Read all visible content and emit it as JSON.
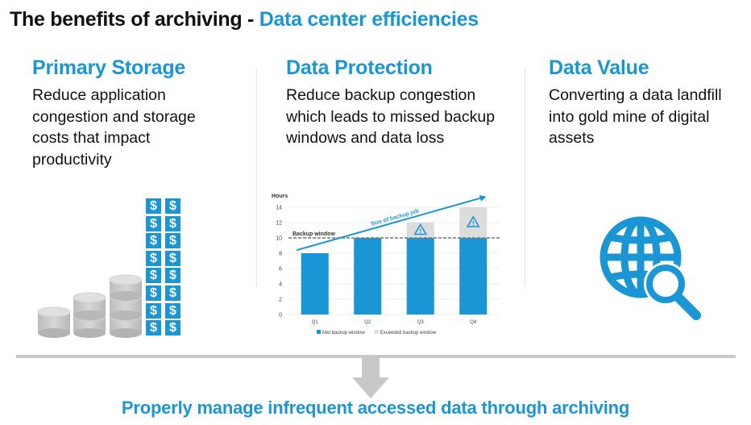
{
  "title": {
    "main": "The benefits of archiving - ",
    "accent": "Data center efficiencies"
  },
  "columns": [
    {
      "heading": "Primary Storage",
      "lines": [
        "Reduce application",
        "congestion and storage",
        "costs that impact",
        "productivity"
      ]
    },
    {
      "heading": "Data Protection",
      "lines": [
        "Reduce backup congestion",
        "which leads to missed backup",
        "windows and data loss"
      ]
    },
    {
      "heading": "Data Value",
      "lines": [
        "Converting a data landfill",
        "into gold mine of digital",
        "assets"
      ]
    }
  ],
  "icons": {
    "storage": "stacked-storage-and-dollars-icon",
    "value": "globe-magnifier-icon",
    "arrow": "down-arrow-icon",
    "dollar_glyph": "$"
  },
  "bottom_text": "Properly manage infrequent accessed data through archiving",
  "colors": {
    "accent": "#1a96d4",
    "exceeded": "#dcdcdc",
    "grey": "#c8c8c8"
  },
  "chart_data": {
    "type": "bar",
    "ylabel": "Hours",
    "categories": [
      "Q1",
      "Q2",
      "Q3",
      "Q4"
    ],
    "ylim": [
      0,
      14
    ],
    "yticks": [
      0,
      2,
      4,
      6,
      8,
      10,
      12,
      14
    ],
    "series": [
      {
        "name": "Met backup window",
        "values": [
          8,
          10,
          10,
          10
        ],
        "color": "#1a96d4"
      },
      {
        "name": "Exceeded backup window",
        "values": [
          0,
          0,
          2,
          4
        ],
        "color": "#dcdcdc"
      }
    ],
    "reference_line": {
      "label": "Backup window",
      "value": 10
    },
    "trend_label": "Size of backup job",
    "warning_markers": [
      "Q3",
      "Q4"
    ]
  }
}
